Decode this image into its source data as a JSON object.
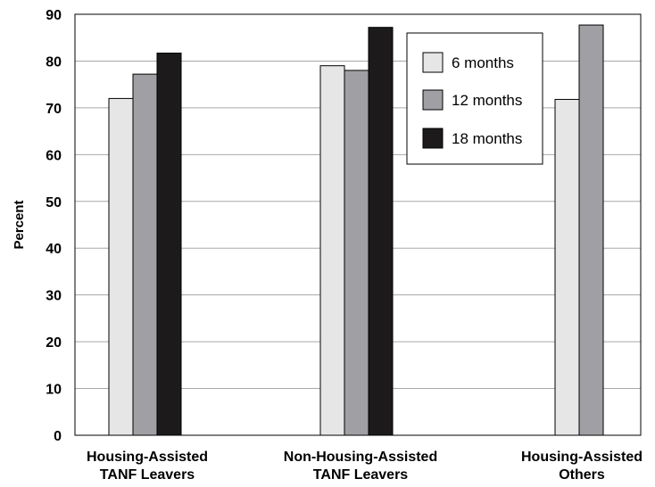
{
  "chart_data": {
    "type": "bar",
    "categories": [
      [
        "Housing-Assisted",
        "TANF Leavers"
      ],
      [
        "Non-Housing-Assisted",
        "TANF Leavers"
      ],
      [
        "Housing-Assisted",
        "Others"
      ]
    ],
    "series": [
      {
        "name": "6 months",
        "values": [
          72,
          79,
          71.8
        ],
        "color": "#e6e6e6"
      },
      {
        "name": "12 months",
        "values": [
          77.2,
          78,
          87.7
        ],
        "color": "#a0a0a4"
      },
      {
        "name": "18 months",
        "values": [
          81.7,
          87.2,
          null
        ],
        "color": "#1c1a1a"
      }
    ],
    "ylabel": "Percent",
    "ylim": [
      0,
      90
    ],
    "yticks": [
      "0",
      "10",
      "20",
      "30",
      "40",
      "50",
      "60",
      "70",
      "80",
      "90"
    ],
    "grid": true,
    "legend": "top-right"
  }
}
